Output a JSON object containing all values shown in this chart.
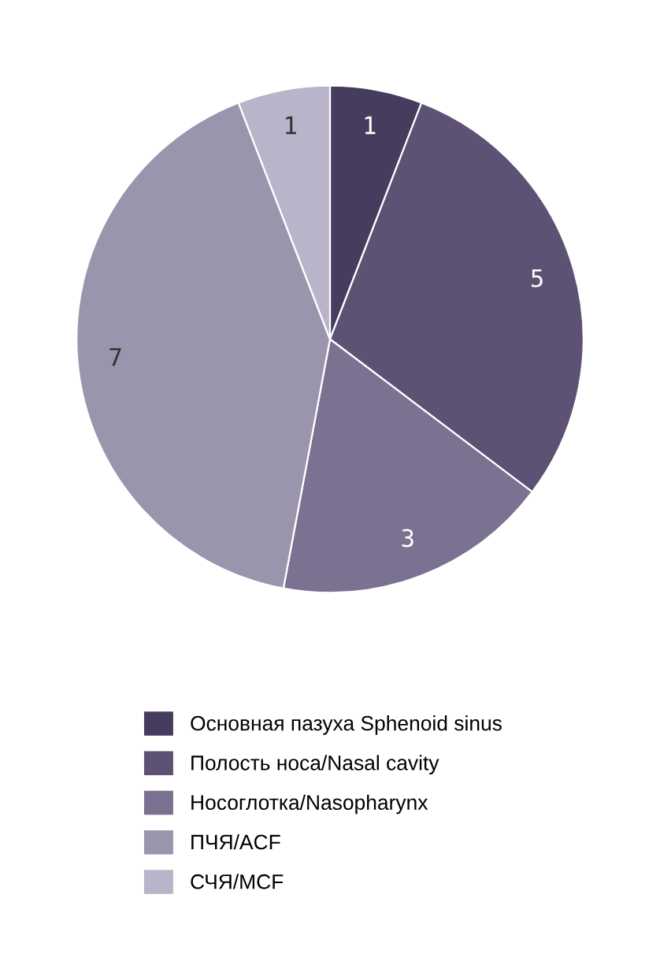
{
  "chart_data": {
    "type": "pie",
    "categories": [
      "Основная пазуха Sphenoid sinus",
      "Полость носа/Nasal cavity",
      "Носоглотка/Nasopharynx",
      "ПЧЯ/ACF",
      "СЧЯ/MCF"
    ],
    "values": [
      1,
      5,
      3,
      7,
      1
    ],
    "colors": [
      "#463c5e",
      "#5d5274",
      "#7b7191",
      "#9b94ad",
      "#b9b4c9"
    ],
    "data_labels": true,
    "legend": "bottom"
  }
}
